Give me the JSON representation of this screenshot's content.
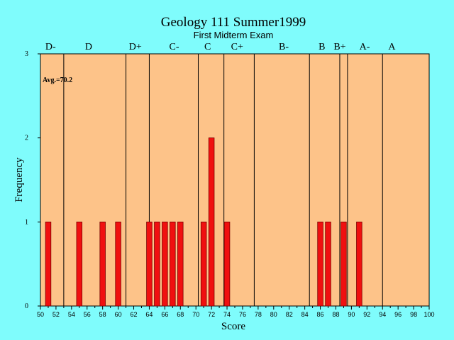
{
  "colors": {
    "background": "#7ffcfc",
    "plot_area": "#fdc389",
    "bar": "#f01010",
    "bar_edge": "#7a0000"
  },
  "chart_data": {
    "type": "bar",
    "title": "Geology 111 Summer1999",
    "subtitle": "First Midterm Exam",
    "xlabel": "Score",
    "ylabel": "Frequency",
    "xlim": [
      50,
      100
    ],
    "ylim": [
      0,
      3
    ],
    "x_ticks": [
      50,
      52,
      54,
      56,
      58,
      60,
      62,
      64,
      66,
      68,
      70,
      72,
      74,
      76,
      78,
      80,
      82,
      84,
      86,
      88,
      90,
      92,
      94,
      96,
      98,
      100
    ],
    "y_ticks": [
      0,
      1,
      2,
      3
    ],
    "average_label": "Avg.=70.2",
    "bars": [
      {
        "x": 51,
        "value": 1
      },
      {
        "x": 55,
        "value": 1
      },
      {
        "x": 58,
        "value": 1
      },
      {
        "x": 60,
        "value": 1
      },
      {
        "x": 64,
        "value": 1
      },
      {
        "x": 65,
        "value": 1
      },
      {
        "x": 66,
        "value": 1
      },
      {
        "x": 67,
        "value": 1
      },
      {
        "x": 68,
        "value": 1
      },
      {
        "x": 71,
        "value": 1
      },
      {
        "x": 72,
        "value": 2
      },
      {
        "x": 74,
        "value": 1
      },
      {
        "x": 86,
        "value": 1
      },
      {
        "x": 87,
        "value": 1
      },
      {
        "x": 89,
        "value": 1
      },
      {
        "x": 91,
        "value": 1
      }
    ],
    "grade_cutoffs": [
      53,
      61,
      64,
      70.3,
      73.6,
      77.5,
      84.6,
      88.5,
      89.5,
      94
    ],
    "grade_labels": [
      {
        "label": "D-",
        "x": 51.3
      },
      {
        "label": "D",
        "x": 56.2
      },
      {
        "label": "D+",
        "x": 62.2
      },
      {
        "label": "C-",
        "x": 67.2
      },
      {
        "label": "C",
        "x": 71.5
      },
      {
        "label": "C+",
        "x": 75.3
      },
      {
        "label": "B-",
        "x": 81.3
      },
      {
        "label": "B",
        "x": 86.2
      },
      {
        "label": "B+",
        "x": 88.5
      },
      {
        "label": "A-",
        "x": 91.7
      },
      {
        "label": "A",
        "x": 95.2
      }
    ]
  }
}
